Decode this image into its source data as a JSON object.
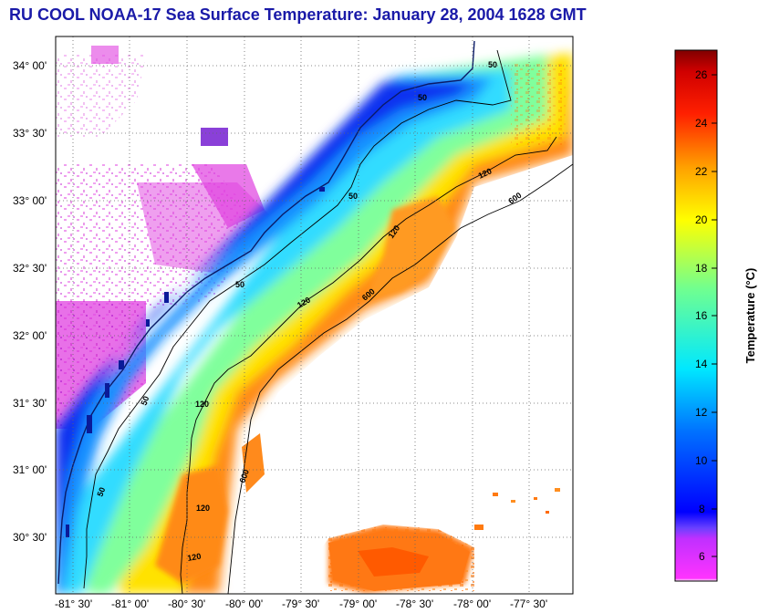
{
  "title": "RU COOL  NOAA-17  Sea Surface Temperature:  January 28, 2004 1628 GMT",
  "map": {
    "lon_ticks": [
      "-81° 30'",
      "-81° 00'",
      "-80° 30'",
      "-80° 00'",
      "-79° 30'",
      "-79° 00'",
      "-78° 30'",
      "-78° 00'",
      "-77° 30'"
    ],
    "lat_ticks": [
      "34° 00'",
      "33° 30'",
      "33° 00'",
      "32° 30'",
      "32° 00'",
      "31° 30'",
      "31° 00'",
      "30° 30'"
    ],
    "contour_labels": [
      "50",
      "50",
      "50",
      "50",
      "50",
      "50",
      "120",
      "120",
      "120",
      "120",
      "120",
      "120",
      "600",
      "600",
      "600"
    ],
    "grid": "on (dotted)"
  },
  "colorbar": {
    "label": "Temperature (°C)",
    "ticks": [
      "26",
      "24",
      "22",
      "20",
      "18",
      "16",
      "14",
      "12",
      "10",
      "8",
      "6"
    ],
    "range": [
      5,
      27
    ],
    "colors": {
      "min": "#ff00ff",
      "low": "#0000ff",
      "mid": "#00ffff",
      "mid2": "#ffff00",
      "high": "#ff0000",
      "max": "#800000"
    }
  },
  "sst_colors": {
    "land_cloud": "#e040e0",
    "coastal": "#1530ff",
    "shelf": "#40e0ff",
    "mid_shelf": "#a0ffb0",
    "outer_shelf": "#ffe800",
    "gulfstream": "#ff8c1a",
    "land_water": "#0a1a99"
  }
}
